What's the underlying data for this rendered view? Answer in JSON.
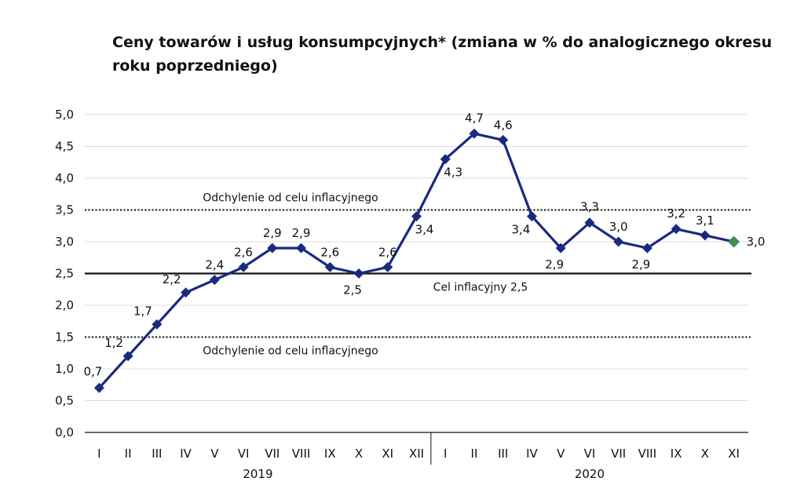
{
  "chart_data": {
    "type": "line",
    "title": "Ceny towarów i usług konsumpcyjnych* (zmiana w % do analogicznego okresu roku poprzedniego)",
    "ylim": [
      0,
      5
    ],
    "yticks": [
      "0,0",
      "0,5",
      "1,0",
      "1,5",
      "2,0",
      "2,5",
      "3,0",
      "3,5",
      "4,0",
      "4,5",
      "5,0"
    ],
    "categories": [
      "I",
      "II",
      "III",
      "IV",
      "V",
      "VI",
      "VII",
      "VIII",
      "IX",
      "X",
      "XI",
      "XII",
      "I",
      "II",
      "III",
      "IV",
      "V",
      "VI",
      "VII",
      "VIII",
      "IX",
      "X",
      "XI"
    ],
    "year_groups": [
      {
        "label": "2019",
        "from": 0,
        "to": 11
      },
      {
        "label": "2020",
        "from": 12,
        "to": 22
      }
    ],
    "series": [
      {
        "values": [
          0.7,
          1.2,
          1.7,
          2.2,
          2.4,
          2.6,
          2.9,
          2.9,
          2.6,
          2.5,
          2.6,
          3.4,
          4.3,
          4.7,
          4.6,
          3.4,
          2.9,
          3.3,
          3.0,
          2.9,
          3.2,
          3.1,
          3.0
        ],
        "labels": [
          "0,7",
          "1,2",
          "1,7",
          "2,2",
          "2,4",
          "2,6",
          "2,9",
          "2,9",
          "2,6",
          "2,5",
          "2,6",
          "3,4",
          "4,3",
          "4,7",
          "4,6",
          "3,4",
          "2,9",
          "3,3",
          "3,0",
          "2,9",
          "3,2",
          "3,1",
          "3,0"
        ],
        "color": "#1a2a80",
        "last_point_color": "#3f8f4f"
      }
    ],
    "reference_lines": [
      {
        "value": 3.5,
        "style": "dotted",
        "label": "Odchylenie od celu inflacyjnego"
      },
      {
        "value": 2.5,
        "style": "solid",
        "label": "Cel inflacyjny 2,5"
      },
      {
        "value": 1.5,
        "style": "dotted",
        "label": "Odchylenie od celu inflacyjnego"
      }
    ],
    "grid": true,
    "legend": "none"
  }
}
